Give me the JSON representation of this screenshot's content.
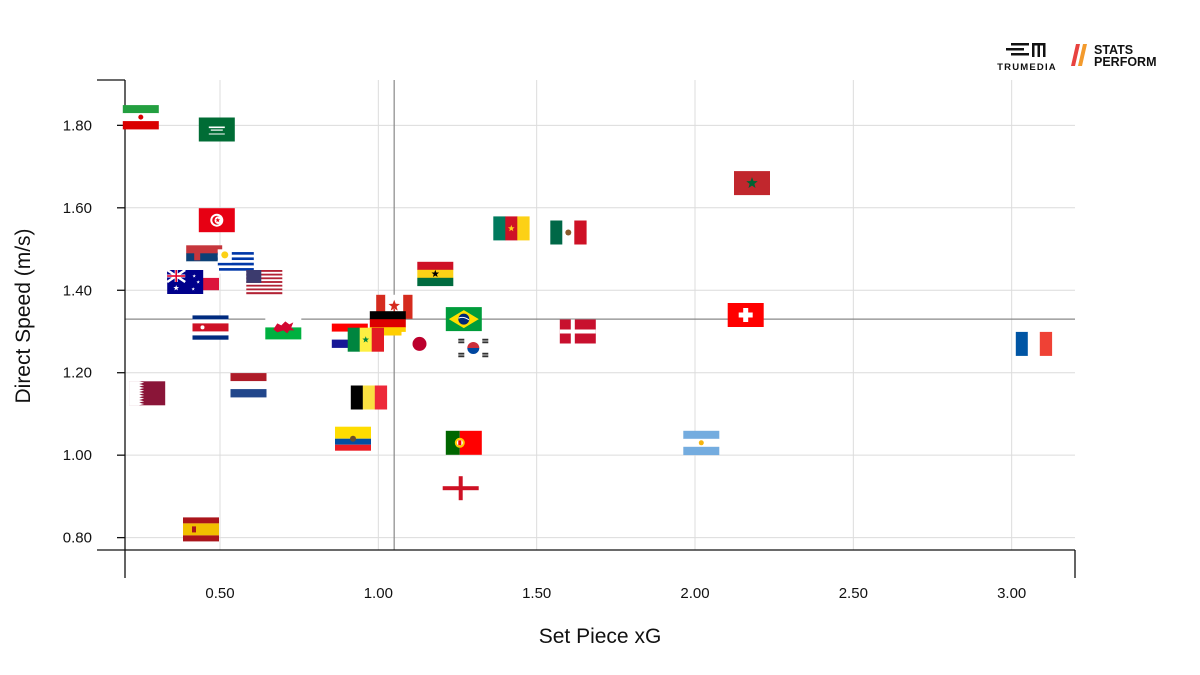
{
  "chart_data": {
    "type": "scatter",
    "title": "",
    "xlabel": "Set Piece xG",
    "ylabel": "Direct Speed (m/s)",
    "xlim": [
      0.2,
      3.2
    ],
    "ylim": [
      0.77,
      1.91
    ],
    "xticks": [
      0.5,
      1.0,
      1.5,
      2.0,
      2.5,
      3.0
    ],
    "xtick_labels": [
      "0.50",
      "1.00",
      "1.50",
      "2.00",
      "2.50",
      "3.00"
    ],
    "yticks": [
      0.8,
      1.0,
      1.2,
      1.4,
      1.6,
      1.8
    ],
    "ytick_labels": [
      "0.80",
      "1.00",
      "1.20",
      "1.40",
      "1.60",
      "1.80"
    ],
    "reference_lines": {
      "x": 1.05,
      "y": 1.33
    },
    "grid": true,
    "points": [
      {
        "team": "Iran",
        "flag": "iran",
        "x": 0.25,
        "y": 1.82
      },
      {
        "team": "Saudi Arabia",
        "flag": "saudi",
        "x": 0.49,
        "y": 1.79
      },
      {
        "team": "Morocco",
        "flag": "morocco",
        "x": 2.18,
        "y": 1.66
      },
      {
        "team": "Tunisia",
        "flag": "tunisia",
        "x": 0.49,
        "y": 1.57
      },
      {
        "team": "Cameroon",
        "flag": "cameroon",
        "x": 1.42,
        "y": 1.55
      },
      {
        "team": "Mexico",
        "flag": "mexico",
        "x": 1.6,
        "y": 1.54
      },
      {
        "team": "Serbia",
        "flag": "serbia",
        "x": 0.45,
        "y": 1.48
      },
      {
        "team": "Uruguay",
        "flag": "uruguay",
        "x": 0.55,
        "y": 1.47
      },
      {
        "team": "Ghana",
        "flag": "ghana",
        "x": 1.18,
        "y": 1.44
      },
      {
        "team": "Poland",
        "flag": "poland",
        "x": 0.44,
        "y": 1.43
      },
      {
        "team": "Australia",
        "flag": "australia",
        "x": 0.39,
        "y": 1.42
      },
      {
        "team": "United States",
        "flag": "usa",
        "x": 0.64,
        "y": 1.42
      },
      {
        "team": "Canada",
        "flag": "canada",
        "x": 1.05,
        "y": 1.36
      },
      {
        "team": "Switzerland",
        "flag": "switzerland",
        "x": 2.16,
        "y": 1.34
      },
      {
        "team": "Brazil",
        "flag": "brazil",
        "x": 1.27,
        "y": 1.33
      },
      {
        "team": "Germany",
        "flag": "germany",
        "x": 1.03,
        "y": 1.32
      },
      {
        "team": "Costa Rica",
        "flag": "costarica",
        "x": 0.47,
        "y": 1.31
      },
      {
        "team": "Wales",
        "flag": "wales",
        "x": 0.7,
        "y": 1.31
      },
      {
        "team": "Denmark",
        "flag": "denmark",
        "x": 1.63,
        "y": 1.3
      },
      {
        "team": "Croatia",
        "flag": "croatia",
        "x": 0.91,
        "y": 1.29
      },
      {
        "team": "Senegal",
        "flag": "senegal",
        "x": 0.96,
        "y": 1.28
      },
      {
        "team": "Japan",
        "flag": "japan",
        "x": 1.13,
        "y": 1.27
      },
      {
        "team": "France",
        "flag": "france",
        "x": 3.07,
        "y": 1.27
      },
      {
        "team": "South Korea",
        "flag": "korea",
        "x": 1.3,
        "y": 1.26
      },
      {
        "team": "Netherlands",
        "flag": "netherlands",
        "x": 0.59,
        "y": 1.17
      },
      {
        "team": "Qatar",
        "flag": "qatar",
        "x": 0.27,
        "y": 1.15
      },
      {
        "team": "Belgium",
        "flag": "belgium",
        "x": 0.97,
        "y": 1.14
      },
      {
        "team": "Ecuador",
        "flag": "ecuador",
        "x": 0.92,
        "y": 1.04
      },
      {
        "team": "Portugal",
        "flag": "portugal",
        "x": 1.27,
        "y": 1.03
      },
      {
        "team": "Argentina",
        "flag": "argentina",
        "x": 2.02,
        "y": 1.03
      },
      {
        "team": "England",
        "flag": "england",
        "x": 1.26,
        "y": 0.92
      },
      {
        "team": "Spain",
        "flag": "spain",
        "x": 0.44,
        "y": 0.82
      }
    ]
  },
  "logos": {
    "trumedia": "TRUMEDIA",
    "stats_line1": "STATS",
    "stats_line2": "PERFORM"
  }
}
